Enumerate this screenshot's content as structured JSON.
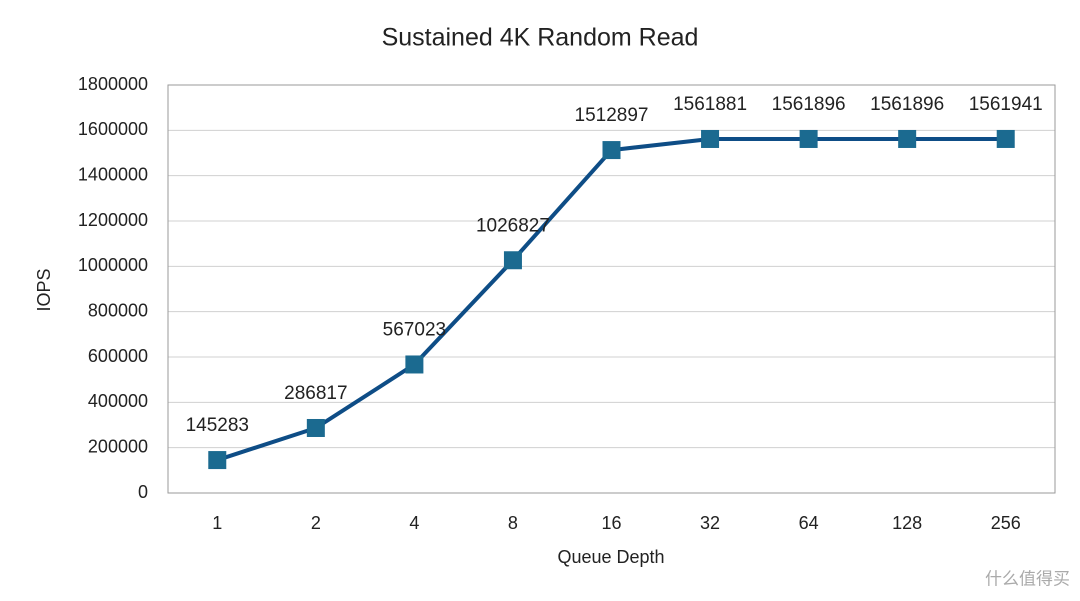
{
  "chart_data": {
    "type": "line",
    "title": "Sustained 4K Random Read",
    "x_label": "Queue Depth",
    "y_label": "IOPS",
    "categories": [
      "1",
      "2",
      "4",
      "8",
      "16",
      "32",
      "64",
      "128",
      "256"
    ],
    "series": [
      {
        "name": "IOPS",
        "color": "#0e4d86",
        "marker_color": "#1b6a90",
        "values": [
          145283,
          286817,
          567023,
          1026827,
          1512897,
          1561881,
          1561896,
          1561896,
          1561941
        ]
      }
    ],
    "ylim": [
      0,
      1800000
    ],
    "yticks": [
      0,
      200000,
      400000,
      600000,
      800000,
      1000000,
      1200000,
      1400000,
      1600000,
      1800000
    ],
    "grid": true,
    "watermark": "什么值得买"
  }
}
